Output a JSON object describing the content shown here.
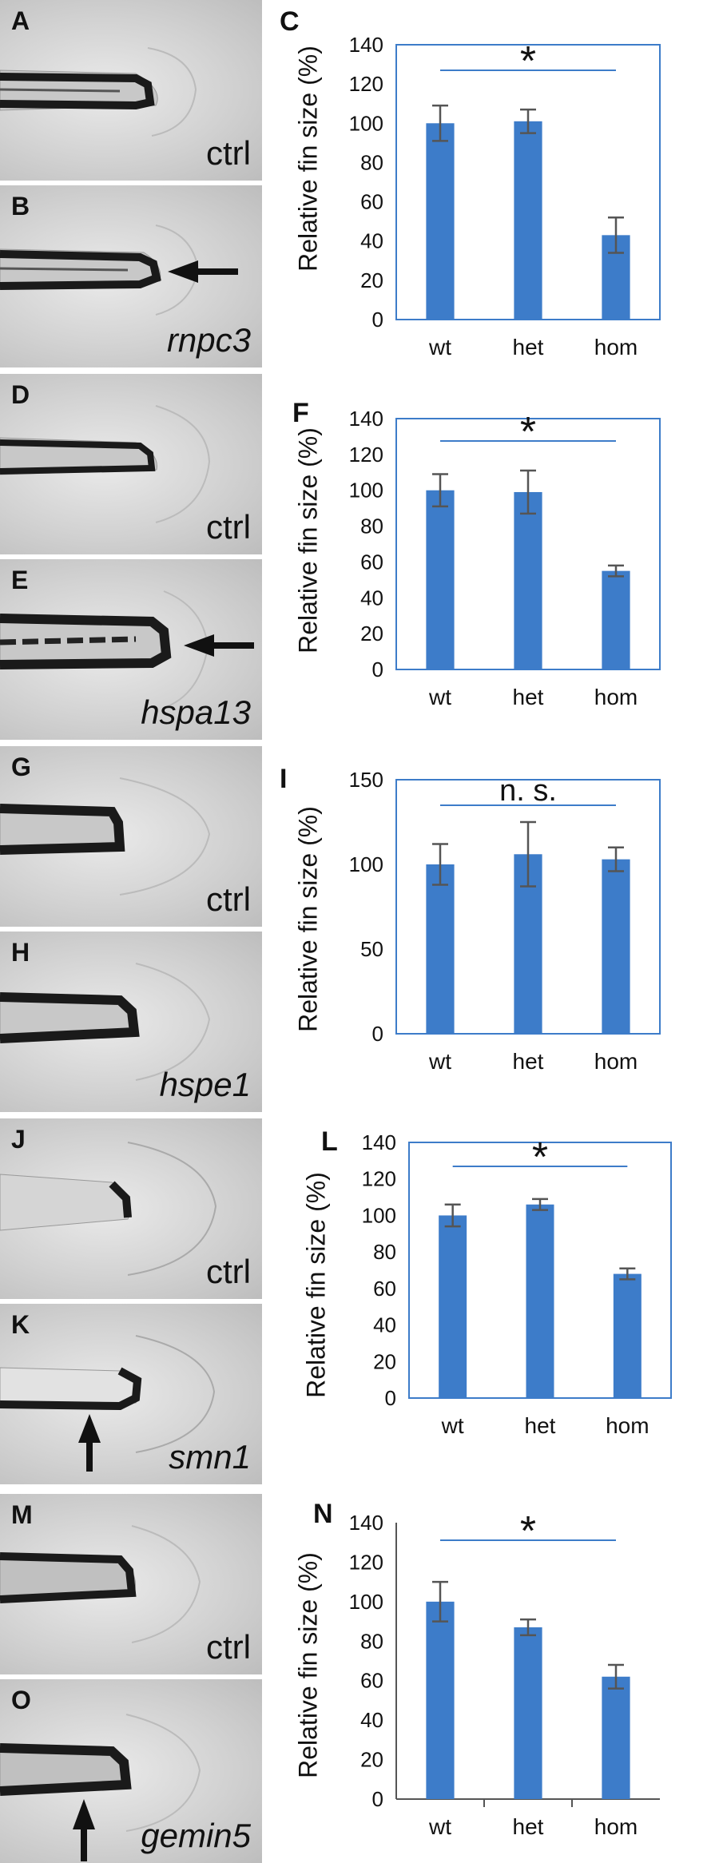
{
  "panels": [
    {
      "label": "A",
      "caption": "ctrl",
      "gene": false,
      "arrow": "none"
    },
    {
      "label": "B",
      "caption": "rnpc3",
      "gene": true,
      "arrow": "left"
    },
    {
      "label": "D",
      "caption": "ctrl",
      "gene": false,
      "arrow": "none"
    },
    {
      "label": "E",
      "caption": "hspa13",
      "gene": true,
      "arrow": "left"
    },
    {
      "label": "G",
      "caption": "ctrl",
      "gene": false,
      "arrow": "none"
    },
    {
      "label": "H",
      "caption": "hspe1",
      "gene": true,
      "arrow": "none"
    },
    {
      "label": "J",
      "caption": "ctrl",
      "gene": false,
      "arrow": "none"
    },
    {
      "label": "K",
      "caption": "smn1",
      "gene": true,
      "arrow": "up"
    },
    {
      "label": "M",
      "caption": "ctrl",
      "gene": false,
      "arrow": "none"
    },
    {
      "label": "O",
      "caption": "gemin5",
      "gene": true,
      "arrow": "up"
    }
  ],
  "chart_data": [
    {
      "panel": "C",
      "type": "bar",
      "categories": [
        "wt",
        "het",
        "hom"
      ],
      "values": [
        100,
        101,
        43
      ],
      "errors": [
        9,
        6,
        9
      ],
      "ylabel": "Relative fin size (%)",
      "ylim": [
        0,
        140
      ],
      "yticks": [
        0,
        20,
        40,
        60,
        80,
        100,
        120,
        140
      ],
      "significance": "*",
      "box": true,
      "bar_color": "#3d7cc9"
    },
    {
      "panel": "F",
      "type": "bar",
      "categories": [
        "wt",
        "het",
        "hom"
      ],
      "values": [
        100,
        99,
        55
      ],
      "errors": [
        9,
        12,
        3
      ],
      "ylabel": "Relative fin size (%)",
      "ylim": [
        0,
        140
      ],
      "yticks": [
        0,
        20,
        40,
        60,
        80,
        100,
        120,
        140
      ],
      "significance": "*",
      "box": true,
      "bar_color": "#3d7cc9"
    },
    {
      "panel": "I",
      "type": "bar",
      "categories": [
        "wt",
        "het",
        "hom"
      ],
      "values": [
        100,
        106,
        103
      ],
      "errors": [
        12,
        19,
        7
      ],
      "ylabel": "Relative fin size (%)",
      "ylim": [
        0,
        150
      ],
      "yticks": [
        0,
        50,
        100,
        150
      ],
      "significance": "n. s.",
      "box": true,
      "bar_color": "#3d7cc9"
    },
    {
      "panel": "L",
      "type": "bar",
      "categories": [
        "wt",
        "het",
        "hom"
      ],
      "values": [
        100,
        106,
        68
      ],
      "errors": [
        6,
        3,
        3
      ],
      "ylabel": "Relative fin size (%)",
      "ylim": [
        0,
        140
      ],
      "yticks": [
        0,
        20,
        40,
        60,
        80,
        100,
        120,
        140
      ],
      "significance": "*",
      "box": true,
      "bar_color": "#3d7cc9"
    },
    {
      "panel": "N",
      "type": "bar",
      "categories": [
        "wt",
        "het",
        "hom"
      ],
      "values": [
        100,
        87,
        62
      ],
      "errors": [
        10,
        4,
        6
      ],
      "ylabel": "Relative fin size (%)",
      "ylim": [
        0,
        140
      ],
      "yticks": [
        0,
        20,
        40,
        60,
        80,
        100,
        120,
        140
      ],
      "significance": "*",
      "box": false,
      "bar_color": "#3d7cc9"
    }
  ]
}
